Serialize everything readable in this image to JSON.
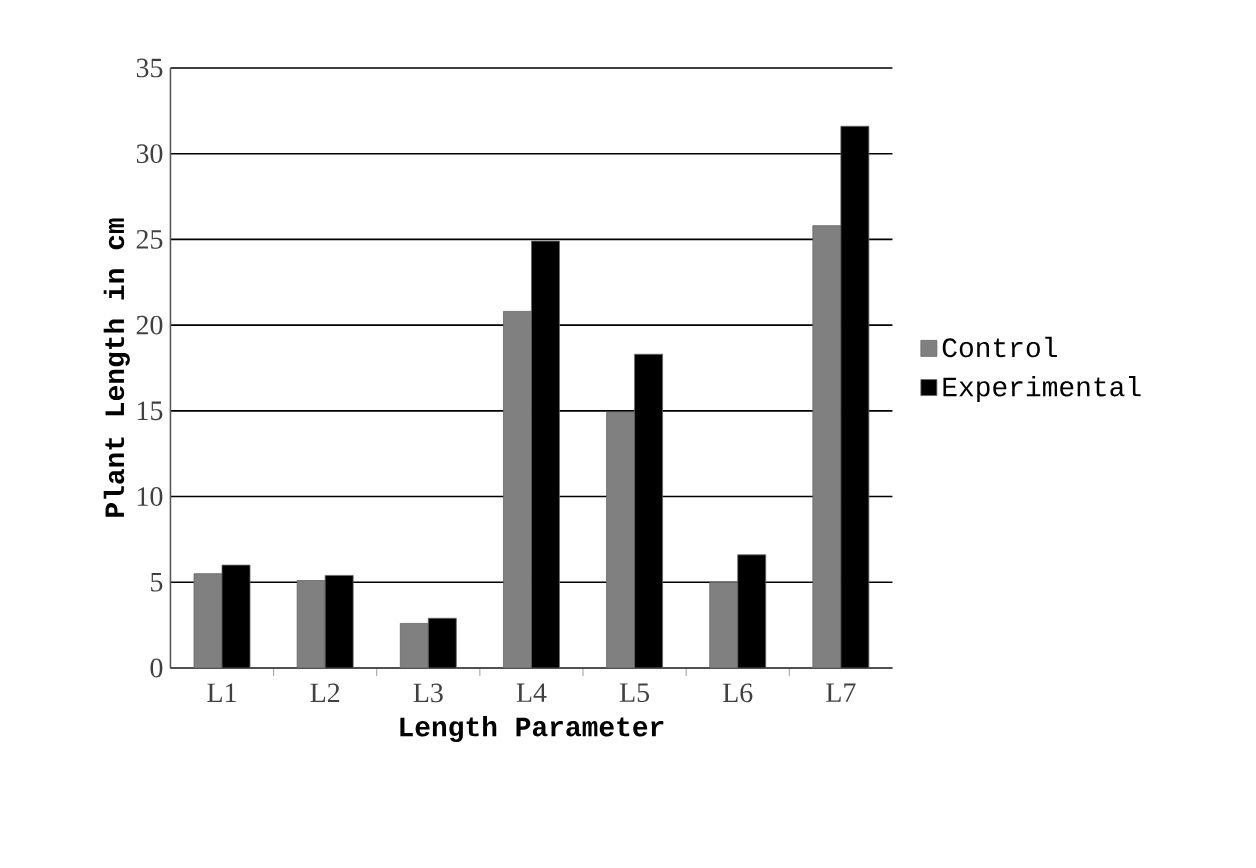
{
  "chart_data": {
    "type": "bar",
    "xlabel": "Length Parameter",
    "ylabel": "Plant Length in cm",
    "categories": [
      "L1",
      "L2",
      "L3",
      "L4",
      "L5",
      "L6",
      "L7"
    ],
    "series": [
      {
        "name": "Control",
        "color": "#808080",
        "values": [
          5.5,
          5.1,
          2.6,
          20.8,
          14.9,
          5.0,
          25.8
        ]
      },
      {
        "name": "Experimental",
        "color": "#000000",
        "values": [
          6.0,
          5.4,
          2.9,
          24.9,
          18.3,
          6.6,
          31.6
        ]
      }
    ],
    "ylim": [
      0,
      35
    ],
    "yticks": [
      0,
      5,
      10,
      15,
      20,
      25,
      30,
      35
    ],
    "grid": "y",
    "legend": "right"
  }
}
